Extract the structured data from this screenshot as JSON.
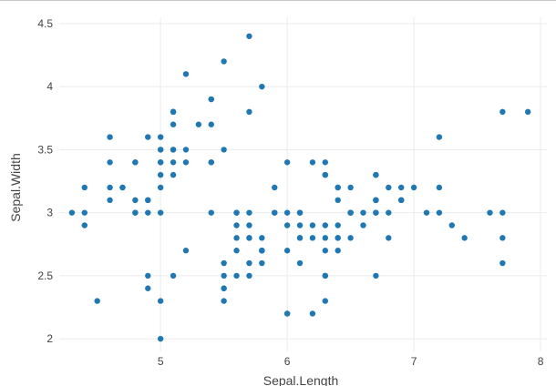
{
  "chart_data": {
    "type": "scatter",
    "title": "",
    "xlabel": "Sepal.Length",
    "ylabel": "Sepal.Width",
    "xlim": [
      4.2,
      8.05
    ],
    "ylim": [
      1.9,
      4.55
    ],
    "x_ticks": [
      "5",
      "6",
      "7",
      "8"
    ],
    "y_ticks": [
      "2",
      "2.5",
      "3",
      "3.5",
      "4",
      "4.5"
    ],
    "x_tick_values": [
      5,
      6,
      7,
      8
    ],
    "y_tick_values": [
      2,
      2.5,
      3,
      3.5,
      4,
      4.5
    ],
    "grid": true,
    "legend": "none",
    "marker_color": "#1f77b4",
    "series": [
      {
        "points": [
          [
            5.1,
            3.5
          ],
          [
            4.9,
            3.0
          ],
          [
            4.7,
            3.2
          ],
          [
            4.6,
            3.1
          ],
          [
            5.0,
            3.6
          ],
          [
            5.4,
            3.9
          ],
          [
            4.6,
            3.4
          ],
          [
            5.0,
            3.4
          ],
          [
            4.4,
            2.9
          ],
          [
            4.9,
            3.1
          ],
          [
            5.4,
            3.7
          ],
          [
            4.8,
            3.4
          ],
          [
            4.8,
            3.0
          ],
          [
            4.3,
            3.0
          ],
          [
            5.8,
            4.0
          ],
          [
            5.7,
            4.4
          ],
          [
            5.4,
            3.9
          ],
          [
            5.1,
            3.5
          ],
          [
            5.7,
            3.8
          ],
          [
            5.1,
            3.8
          ],
          [
            5.4,
            3.4
          ],
          [
            5.1,
            3.7
          ],
          [
            4.6,
            3.6
          ],
          [
            5.1,
            3.3
          ],
          [
            4.8,
            3.4
          ],
          [
            5.0,
            3.0
          ],
          [
            5.0,
            3.4
          ],
          [
            5.2,
            3.5
          ],
          [
            5.2,
            3.4
          ],
          [
            4.7,
            3.2
          ],
          [
            4.8,
            3.1
          ],
          [
            5.4,
            3.4
          ],
          [
            5.2,
            4.1
          ],
          [
            5.5,
            4.2
          ],
          [
            4.9,
            3.1
          ],
          [
            5.0,
            3.2
          ],
          [
            5.5,
            3.5
          ],
          [
            4.9,
            3.6
          ],
          [
            4.4,
            3.0
          ],
          [
            5.1,
            3.4
          ],
          [
            5.0,
            3.5
          ],
          [
            4.5,
            2.3
          ],
          [
            4.4,
            3.2
          ],
          [
            5.0,
            3.5
          ],
          [
            5.1,
            3.8
          ],
          [
            4.8,
            3.0
          ],
          [
            5.1,
            3.8
          ],
          [
            4.6,
            3.2
          ],
          [
            5.3,
            3.7
          ],
          [
            5.0,
            3.3
          ],
          [
            7.0,
            3.2
          ],
          [
            6.4,
            3.2
          ],
          [
            6.9,
            3.1
          ],
          [
            5.5,
            2.3
          ],
          [
            6.5,
            2.8
          ],
          [
            5.7,
            2.8
          ],
          [
            6.3,
            3.3
          ],
          [
            4.9,
            2.4
          ],
          [
            6.6,
            2.9
          ],
          [
            5.2,
            2.7
          ],
          [
            5.0,
            2.0
          ],
          [
            5.9,
            3.0
          ],
          [
            6.0,
            2.2
          ],
          [
            6.1,
            2.9
          ],
          [
            5.6,
            2.9
          ],
          [
            6.7,
            3.1
          ],
          [
            5.6,
            3.0
          ],
          [
            5.8,
            2.7
          ],
          [
            6.2,
            2.2
          ],
          [
            5.6,
            2.5
          ],
          [
            5.9,
            3.2
          ],
          [
            6.1,
            2.8
          ],
          [
            6.3,
            2.5
          ],
          [
            6.1,
            2.8
          ],
          [
            6.4,
            2.9
          ],
          [
            6.6,
            3.0
          ],
          [
            6.8,
            2.8
          ],
          [
            6.7,
            3.0
          ],
          [
            6.0,
            2.9
          ],
          [
            5.7,
            2.6
          ],
          [
            5.5,
            2.4
          ],
          [
            5.5,
            2.4
          ],
          [
            5.8,
            2.7
          ],
          [
            6.0,
            2.7
          ],
          [
            5.4,
            3.0
          ],
          [
            6.0,
            3.4
          ],
          [
            6.7,
            3.1
          ],
          [
            6.3,
            2.3
          ],
          [
            5.6,
            3.0
          ],
          [
            5.5,
            2.5
          ],
          [
            5.5,
            2.6
          ],
          [
            6.1,
            3.0
          ],
          [
            5.8,
            2.6
          ],
          [
            5.0,
            2.3
          ],
          [
            5.6,
            2.7
          ],
          [
            5.7,
            3.0
          ],
          [
            5.7,
            2.9
          ],
          [
            6.2,
            2.9
          ],
          [
            5.1,
            2.5
          ],
          [
            5.7,
            2.8
          ],
          [
            6.3,
            3.3
          ],
          [
            5.8,
            2.7
          ],
          [
            7.1,
            3.0
          ],
          [
            6.3,
            2.9
          ],
          [
            6.5,
            3.0
          ],
          [
            7.6,
            3.0
          ],
          [
            4.9,
            2.5
          ],
          [
            7.3,
            2.9
          ],
          [
            6.7,
            2.5
          ],
          [
            7.2,
            3.6
          ],
          [
            6.5,
            3.2
          ],
          [
            6.4,
            2.7
          ],
          [
            6.8,
            3.0
          ],
          [
            5.7,
            2.5
          ],
          [
            5.8,
            2.8
          ],
          [
            6.4,
            3.2
          ],
          [
            6.5,
            3.0
          ],
          [
            7.7,
            3.8
          ],
          [
            7.7,
            2.6
          ],
          [
            6.0,
            2.2
          ],
          [
            6.9,
            3.2
          ],
          [
            5.6,
            2.8
          ],
          [
            7.7,
            2.8
          ],
          [
            6.3,
            2.7
          ],
          [
            6.7,
            3.3
          ],
          [
            7.2,
            3.2
          ],
          [
            6.2,
            2.8
          ],
          [
            6.1,
            3.0
          ],
          [
            6.4,
            2.8
          ],
          [
            7.2,
            3.0
          ],
          [
            7.4,
            2.8
          ],
          [
            7.9,
            3.8
          ],
          [
            6.4,
            2.8
          ],
          [
            6.3,
            2.8
          ],
          [
            6.1,
            2.6
          ],
          [
            7.7,
            3.0
          ],
          [
            6.3,
            3.4
          ],
          [
            6.4,
            3.1
          ],
          [
            6.0,
            3.0
          ],
          [
            6.9,
            3.1
          ],
          [
            6.7,
            3.1
          ],
          [
            6.9,
            3.1
          ],
          [
            5.8,
            2.7
          ],
          [
            6.8,
            3.2
          ],
          [
            6.7,
            3.3
          ],
          [
            6.7,
            3.0
          ],
          [
            6.3,
            2.5
          ],
          [
            6.5,
            3.0
          ],
          [
            6.2,
            3.4
          ],
          [
            5.9,
            3.0
          ]
        ]
      }
    ]
  }
}
